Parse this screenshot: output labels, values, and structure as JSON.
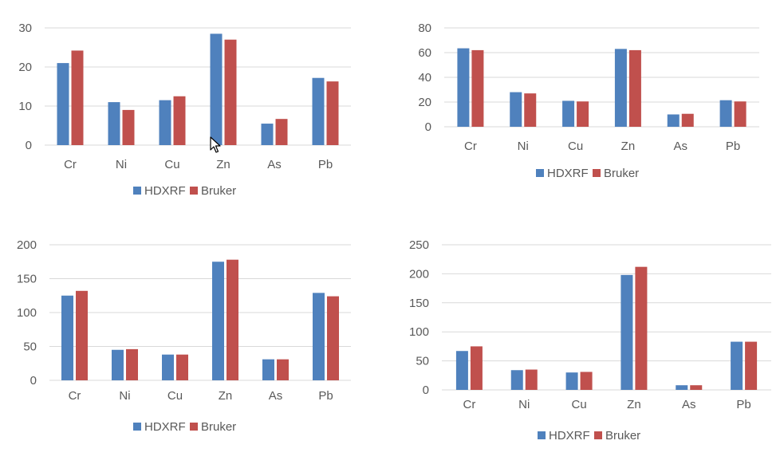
{
  "chart_data": [
    {
      "type": "bar",
      "categories": [
        "Cr",
        "Ni",
        "Cu",
        "Zn",
        "As",
        "Pb"
      ],
      "series": [
        {
          "name": "HDXRF",
          "values": [
            21,
            11,
            11.5,
            28.5,
            5.5,
            17.2
          ]
        },
        {
          "name": "Bruker",
          "values": [
            24.2,
            9,
            12.5,
            27,
            6.7,
            16.3
          ]
        }
      ],
      "ylim": [
        0,
        30
      ],
      "yticks": [
        0,
        10,
        20,
        30
      ],
      "grid": true,
      "legend": "bottom",
      "colors": [
        "#4f81bd",
        "#c0504d"
      ]
    },
    {
      "type": "bar",
      "categories": [
        "Cr",
        "Ni",
        "Cu",
        "Zn",
        "As",
        "Pb"
      ],
      "series": [
        {
          "name": "HDXRF",
          "values": [
            63.5,
            28,
            21,
            63,
            10,
            21.5
          ]
        },
        {
          "name": "Bruker",
          "values": [
            62,
            27,
            20.5,
            62,
            10.5,
            20.5
          ]
        }
      ],
      "ylim": [
        0,
        80
      ],
      "yticks": [
        0,
        20,
        40,
        60,
        80
      ],
      "grid": true,
      "legend": "bottom",
      "colors": [
        "#4f81bd",
        "#c0504d"
      ]
    },
    {
      "type": "bar",
      "categories": [
        "Cr",
        "Ni",
        "Cu",
        "Zn",
        "As",
        "Pb"
      ],
      "series": [
        {
          "name": "HDXRF",
          "values": [
            125,
            45,
            38,
            175,
            31,
            129
          ]
        },
        {
          "name": "Bruker",
          "values": [
            132,
            46,
            38,
            178,
            31,
            124
          ]
        }
      ],
      "ylim": [
        0,
        200
      ],
      "yticks": [
        0,
        50,
        100,
        150,
        200
      ],
      "grid": true,
      "legend": "bottom",
      "colors": [
        "#4f81bd",
        "#c0504d"
      ]
    },
    {
      "type": "bar",
      "categories": [
        "Cr",
        "Ni",
        "Cu",
        "Zn",
        "As",
        "Pb"
      ],
      "series": [
        {
          "name": "HDXRF",
          "values": [
            67,
            34,
            30,
            198,
            8,
            83
          ]
        },
        {
          "name": "Bruker",
          "values": [
            75,
            35,
            31,
            212,
            8,
            83
          ]
        }
      ],
      "ylim": [
        0,
        250
      ],
      "yticks": [
        0,
        50,
        100,
        150,
        200,
        250
      ],
      "grid": true,
      "legend": "bottom",
      "colors": [
        "#4f81bd",
        "#c0504d"
      ]
    }
  ]
}
